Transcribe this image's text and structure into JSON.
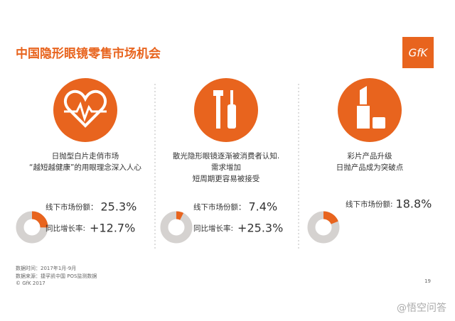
{
  "header": {
    "title": "中国隐形眼镜零售市场机会",
    "logo": "GfK"
  },
  "columns": [
    {
      "description": [
        "日抛型白片走俏市场",
        "“越短越健康”的用眼理念深入人心"
      ],
      "share_label": "线下市场份额：",
      "share": {
        "value": 25.3,
        "label": "25.3%"
      },
      "growth_label": "同比增长率:",
      "growth": "+12.7%"
    },
    {
      "description": [
        "散光隐形眼镜逐渐被消费者认知.",
        "需求增加",
        "短周期更容易被接受"
      ],
      "share_label": "线下市场份额：",
      "share": {
        "value": 7.4,
        "label": "7.4%"
      },
      "growth_label": "同比增长率:",
      "growth": "+25.3%"
    },
    {
      "description": [
        "彩片产品升级",
        "日抛产品成为突破点"
      ],
      "share_label": "线下市场份额:",
      "share": {
        "value": 18.8,
        "label": "18.8%"
      }
    }
  ],
  "footer": {
    "lines": [
      "数据时间：2017年1月-9月",
      "数据来源：捷孚凯中国 POS监测数据",
      "© GfK 2017"
    ],
    "page": "19",
    "watermark": "@悟空问答"
  }
}
